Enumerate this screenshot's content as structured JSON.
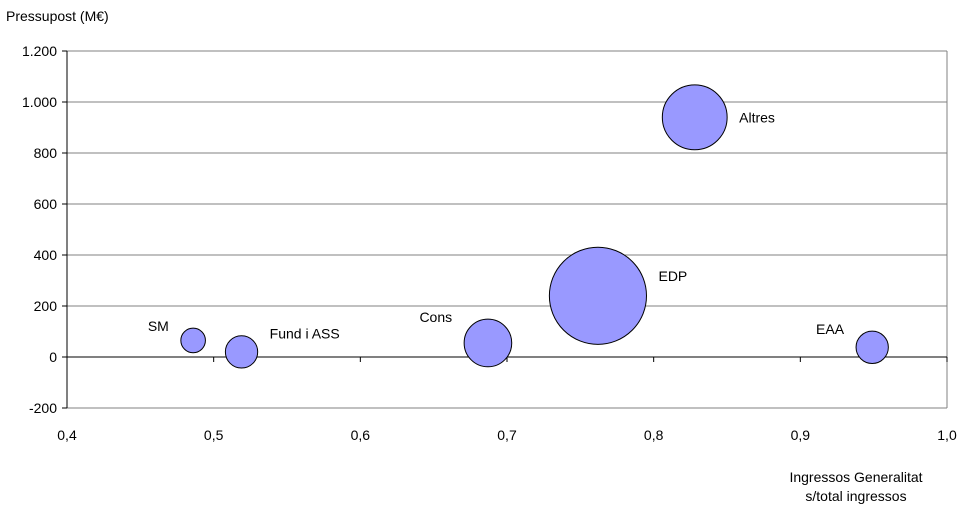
{
  "chart_data": {
    "type": "scatter",
    "title": "",
    "ylabel": "Pressupost (M€)",
    "xlabel_lines": [
      "Ingressos Generalitat",
      "s/total ingressos"
    ],
    "xlim": [
      0.4,
      1.0
    ],
    "ylim": [
      -200,
      1200
    ],
    "x_ticks": [
      0.4,
      0.5,
      0.6,
      0.7,
      0.8,
      0.9,
      1.0
    ],
    "x_tick_labels": [
      "0,4",
      "0,5",
      "0,6",
      "0,7",
      "0,8",
      "0,9",
      "1,0"
    ],
    "y_ticks": [
      -200,
      0,
      200,
      400,
      600,
      800,
      1000,
      1200
    ],
    "y_tick_labels": [
      "-200",
      "0",
      "200",
      "400",
      "600",
      "800",
      "1.000",
      "1.200"
    ],
    "grid": "horizontal",
    "bubble_color": "#9999ff",
    "bubble_stroke": "#000000",
    "points": [
      {
        "label": "SM",
        "x": 0.486,
        "y": 65,
        "size": 1,
        "label_pos": "left"
      },
      {
        "label": "Fund i ASS",
        "x": 0.519,
        "y": 20,
        "size": 2,
        "label_pos": "right"
      },
      {
        "label": "Cons",
        "x": 0.687,
        "y": 55,
        "size": 5,
        "label_pos": "left"
      },
      {
        "label": "EDP",
        "x": 0.762,
        "y": 240,
        "size": 24,
        "label_pos": "right"
      },
      {
        "label": "Altres",
        "x": 0.828,
        "y": 940,
        "size": 10,
        "label_pos": "right"
      },
      {
        "label": "EAA",
        "x": 0.949,
        "y": 38,
        "size": 2,
        "label_pos": "left"
      }
    ]
  }
}
